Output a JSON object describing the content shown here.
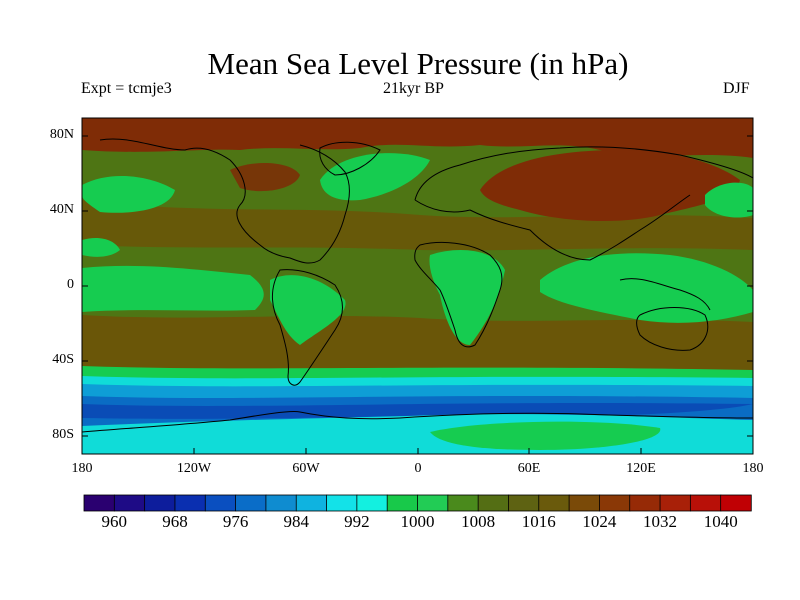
{
  "title": "Mean Sea Level Pressure (in hPa)",
  "subtitle_left": "Expt = tcmje3",
  "subtitle_center": "21kyr BP",
  "subtitle_right": "DJF",
  "lat_labels": [
    "80N",
    "40N",
    "0",
    "40S",
    "80S"
  ],
  "lon_labels": [
    "180",
    "120W",
    "60W",
    "0",
    "60E",
    "120E",
    "180"
  ],
  "colorbar": {
    "labels": [
      "960",
      "968",
      "976",
      "984",
      "992",
      "1000",
      "1008",
      "1016",
      "1024",
      "1032",
      "1040"
    ],
    "colors": [
      "#2a0070",
      "#1e0b86",
      "#0d1d9c",
      "#0a2fb0",
      "#0a4fc0",
      "#0a6dc8",
      "#0f8cd0",
      "#0fb3e0",
      "#13e2e8",
      "#13f0e0",
      "#18c94a",
      "#22cc55",
      "#4a8a1c",
      "#546e14",
      "#5e6212",
      "#6a5a0c",
      "#7a4a08",
      "#8a3806",
      "#962a06",
      "#a82008",
      "#b81008",
      "#c00004"
    ]
  },
  "colors": {
    "high": "#7f2c06",
    "mid_high": "#6a5608",
    "mid": "#4e7514",
    "low_green": "#16cc50",
    "cyan": "#10dcd8",
    "light_blue": "#0e9ed6",
    "blue": "#0a6cc4",
    "deep_blue": "#0a4cb6",
    "coast": "#000000"
  }
}
